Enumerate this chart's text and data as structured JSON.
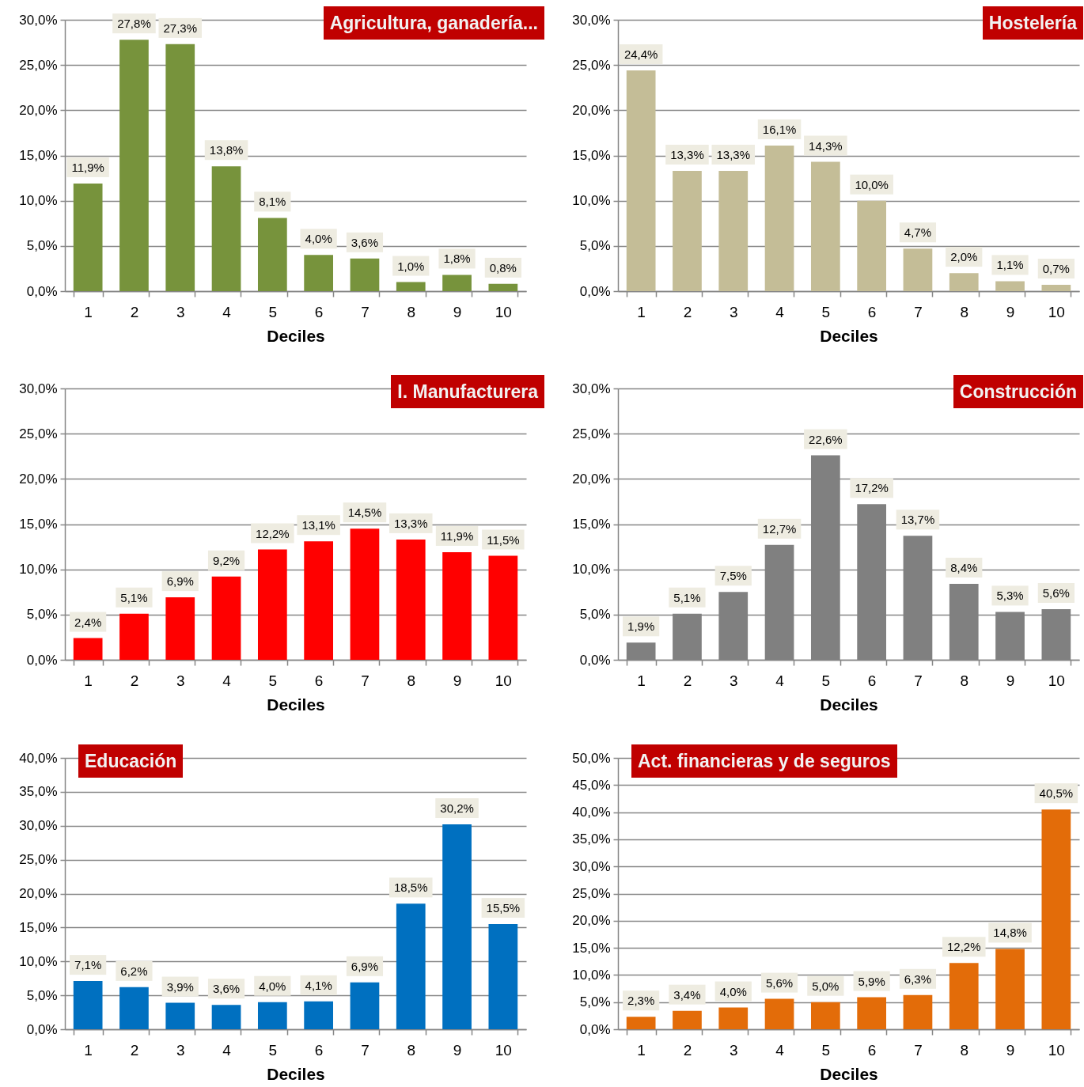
{
  "chart_data": [
    {
      "type": "bar",
      "title": "Agricultura, ganadería...",
      "xlabel": "Deciles",
      "categories": [
        "1",
        "2",
        "3",
        "4",
        "5",
        "6",
        "7",
        "8",
        "9",
        "10"
      ],
      "values": [
        11.9,
        27.8,
        27.3,
        13.8,
        8.1,
        4.0,
        3.6,
        1.0,
        1.8,
        0.8
      ],
      "value_labels": [
        "11,9%",
        "27,8%",
        "27,3%",
        "13,8%",
        "8,1%",
        "4,0%",
        "3,6%",
        "1,0%",
        "1,8%",
        "0,8%"
      ],
      "color": "#77933c",
      "ylim": [
        0,
        30
      ],
      "yticks": [
        {
          "value": 0,
          "label": "0,0%"
        },
        {
          "value": 5,
          "label": "5,0%"
        },
        {
          "value": 10,
          "label": "10,0%"
        },
        {
          "value": 15,
          "label": "15,0%"
        },
        {
          "value": 20,
          "label": "20,0%"
        },
        {
          "value": 25,
          "label": "25,0%"
        },
        {
          "value": 30,
          "label": "30,0%"
        }
      ],
      "grid": "y"
    },
    {
      "type": "bar",
      "title": "Hostelería",
      "xlabel": "Deciles",
      "categories": [
        "1",
        "2",
        "3",
        "4",
        "5",
        "6",
        "7",
        "8",
        "9",
        "10"
      ],
      "values": [
        24.4,
        13.3,
        13.3,
        16.1,
        14.3,
        10.0,
        4.7,
        2.0,
        1.1,
        0.7
      ],
      "value_labels": [
        "24,4%",
        "13,3%",
        "13,3%",
        "16,1%",
        "14,3%",
        "10,0%",
        "4,7%",
        "2,0%",
        "1,1%",
        "0,7%"
      ],
      "color": "#c4bd97",
      "ylim": [
        0,
        30
      ],
      "yticks": [
        {
          "value": 0,
          "label": "0,0%"
        },
        {
          "value": 5,
          "label": "5,0%"
        },
        {
          "value": 10,
          "label": "10,0%"
        },
        {
          "value": 15,
          "label": "15,0%"
        },
        {
          "value": 20,
          "label": "20,0%"
        },
        {
          "value": 25,
          "label": "25,0%"
        },
        {
          "value": 30,
          "label": "30,0%"
        }
      ],
      "grid": "y"
    },
    {
      "type": "bar",
      "title": "I. Manufacturera",
      "xlabel": "Deciles",
      "categories": [
        "1",
        "2",
        "3",
        "4",
        "5",
        "6",
        "7",
        "8",
        "9",
        "10"
      ],
      "values": [
        2.4,
        5.1,
        6.9,
        9.2,
        12.2,
        13.1,
        14.5,
        13.3,
        11.9,
        11.5
      ],
      "value_labels": [
        "2,4%",
        "5,1%",
        "6,9%",
        "9,2%",
        "12,2%",
        "13,1%",
        "14,5%",
        "13,3%",
        "11,9%",
        "11,5%"
      ],
      "color": "#ff0000",
      "ylim": [
        0,
        30
      ],
      "yticks": [
        {
          "value": 0,
          "label": "0,0%"
        },
        {
          "value": 5,
          "label": "5,0%"
        },
        {
          "value": 10,
          "label": "10,0%"
        },
        {
          "value": 15,
          "label": "15,0%"
        },
        {
          "value": 20,
          "label": "20,0%"
        },
        {
          "value": 25,
          "label": "25,0%"
        },
        {
          "value": 30,
          "label": "30,0%"
        }
      ],
      "grid": "y"
    },
    {
      "type": "bar",
      "title": "Construcción",
      "xlabel": "Deciles",
      "categories": [
        "1",
        "2",
        "3",
        "4",
        "5",
        "6",
        "7",
        "8",
        "9",
        "10"
      ],
      "values": [
        1.9,
        5.1,
        7.5,
        12.7,
        22.6,
        17.2,
        13.7,
        8.4,
        5.3,
        5.6
      ],
      "value_labels": [
        "1,9%",
        "5,1%",
        "7,5%",
        "12,7%",
        "22,6%",
        "17,2%",
        "13,7%",
        "8,4%",
        "5,3%",
        "5,6%"
      ],
      "color": "#808080",
      "ylim": [
        0,
        30
      ],
      "yticks": [
        {
          "value": 0,
          "label": "0,0%"
        },
        {
          "value": 5,
          "label": "5,0%"
        },
        {
          "value": 10,
          "label": "10,0%"
        },
        {
          "value": 15,
          "label": "15,0%"
        },
        {
          "value": 20,
          "label": "20,0%"
        },
        {
          "value": 25,
          "label": "25,0%"
        },
        {
          "value": 30,
          "label": "30,0%"
        }
      ],
      "grid": "y"
    },
    {
      "type": "bar",
      "title": "Educación",
      "xlabel": "Deciles",
      "categories": [
        "1",
        "2",
        "3",
        "4",
        "5",
        "6",
        "7",
        "8",
        "9",
        "10"
      ],
      "values": [
        7.1,
        6.2,
        3.9,
        3.6,
        4.0,
        4.1,
        6.9,
        18.5,
        30.2,
        15.5
      ],
      "value_labels": [
        "7,1%",
        "6,2%",
        "3,9%",
        "3,6%",
        "4,0%",
        "4,1%",
        "6,9%",
        "18,5%",
        "30,2%",
        "15,5%"
      ],
      "color": "#0070c0",
      "ylim": [
        0,
        40
      ],
      "yticks": [
        {
          "value": 0,
          "label": "0,0%"
        },
        {
          "value": 5,
          "label": "5,0%"
        },
        {
          "value": 10,
          "label": "10,0%"
        },
        {
          "value": 15,
          "label": "15,0%"
        },
        {
          "value": 20,
          "label": "20,0%"
        },
        {
          "value": 25,
          "label": "25,0%"
        },
        {
          "value": 30,
          "label": "30,0%"
        },
        {
          "value": 35,
          "label": "35,0%"
        },
        {
          "value": 40,
          "label": "40,0%"
        }
      ],
      "grid": "y"
    },
    {
      "type": "bar",
      "title": "Act. financieras y de seguros",
      "xlabel": "Deciles",
      "categories": [
        "1",
        "2",
        "3",
        "4",
        "5",
        "6",
        "7",
        "8",
        "9",
        "10"
      ],
      "values": [
        2.3,
        3.4,
        4.0,
        5.6,
        5.0,
        5.9,
        6.3,
        12.2,
        14.8,
        40.5
      ],
      "value_labels": [
        "2,3%",
        "3,4%",
        "4,0%",
        "5,6%",
        "5,0%",
        "5,9%",
        "6,3%",
        "12,2%",
        "14,8%",
        "40,5%"
      ],
      "color": "#e36c09",
      "ylim": [
        0,
        50
      ],
      "yticks": [
        {
          "value": 0,
          "label": "0,0%"
        },
        {
          "value": 5,
          "label": "5,0%"
        },
        {
          "value": 10,
          "label": "10,0%"
        },
        {
          "value": 15,
          "label": "15,0%"
        },
        {
          "value": 20,
          "label": "20,0%"
        },
        {
          "value": 25,
          "label": "25,0%"
        },
        {
          "value": 30,
          "label": "30,0%"
        },
        {
          "value": 35,
          "label": "35,0%"
        },
        {
          "value": 40,
          "label": "40,0%"
        },
        {
          "value": 45,
          "label": "45,0%"
        },
        {
          "value": 50,
          "label": "50,0%"
        }
      ],
      "grid": "y"
    }
  ]
}
